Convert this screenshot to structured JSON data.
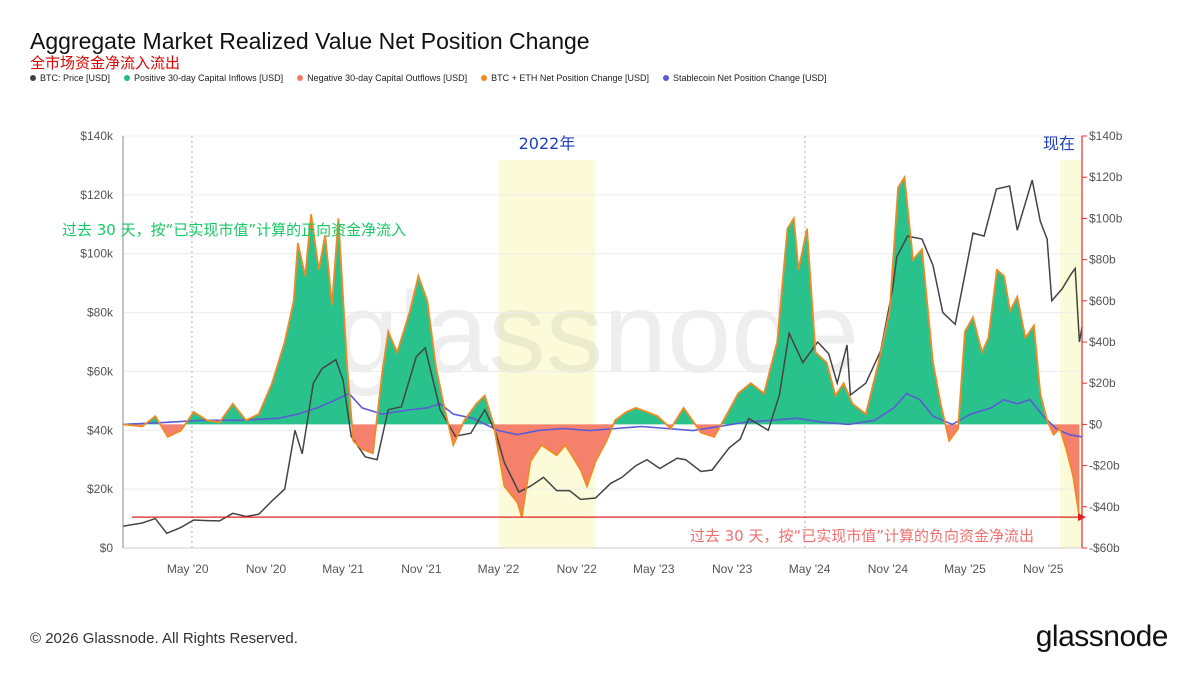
{
  "title": "Aggregate Market Realized Value Net Position Change",
  "subtitle": "全市场资金净流入流出",
  "legend": [
    {
      "label": "BTC: Price [USD]",
      "color": "#444444"
    },
    {
      "label": "Positive 30-day Capital Inflows [USD]",
      "color": "#1fbf86"
    },
    {
      "label": "Negative 30-day Capital Outflows [USD]",
      "color": "#f47a66"
    },
    {
      "label": "BTC + ETH Net Position Change [USD]",
      "color": "#f08a24"
    },
    {
      "label": "Stablecoin Net Position Change [USD]",
      "color": "#5b5bd6"
    }
  ],
  "annotations": {
    "year_2022": "2022年",
    "now": "现在",
    "inflow_note": "过去 30 天，按“已实现市值”计算的正向资金净流入",
    "outflow_note": "过去 30 天，按“已实现市值”计算的负向资金净流出"
  },
  "watermark": "glassnode",
  "copyright": "© 2026 Glassnode. All Rights Reserved.",
  "brand": "glassnode",
  "colors": {
    "inflow": "#1fbf86",
    "outflow": "#f47a66",
    "net": "#f08a24",
    "stablecoin": "#5b5bd6",
    "price": "#444444",
    "highlight": "#fbfbd9",
    "right_axis": "#e03030",
    "annotation_blue": "#1f3fbf",
    "annotation_green": "#18c864",
    "annotation_red": "#f07070"
  },
  "chart_data": {
    "type": "area",
    "x_range": [
      "2019-12-01",
      "2026-01-31"
    ],
    "x_ticks": [
      {
        "date": "2020-05-01",
        "label": "May '20"
      },
      {
        "date": "2020-11-01",
        "label": "Nov '20"
      },
      {
        "date": "2021-05-01",
        "label": "May '21"
      },
      {
        "date": "2021-11-01",
        "label": "Nov '21"
      },
      {
        "date": "2022-05-01",
        "label": "May '22"
      },
      {
        "date": "2022-11-01",
        "label": "Nov '22"
      },
      {
        "date": "2023-05-01",
        "label": "May '23"
      },
      {
        "date": "2023-11-01",
        "label": "Nov '23"
      },
      {
        "date": "2024-05-01",
        "label": "May '24"
      },
      {
        "date": "2024-11-01",
        "label": "Nov '24"
      },
      {
        "date": "2025-05-01",
        "label": "May '25"
      },
      {
        "date": "2025-11-01",
        "label": "Nov '25"
      }
    ],
    "y_left": {
      "min": 0,
      "max": 140000,
      "ticks": [
        0,
        20000,
        40000,
        60000,
        80000,
        100000,
        120000,
        140000
      ],
      "labels": [
        "$0",
        "$20k",
        "$40k",
        "$60k",
        "$80k",
        "$100k",
        "$120k",
        "$140k"
      ]
    },
    "y_right": {
      "min": -60,
      "max": 140,
      "unit": "billion USD",
      "ticks": [
        -60,
        -40,
        -20,
        0,
        20,
        40,
        60,
        80,
        100,
        120,
        140
      ],
      "labels": [
        "-$60b",
        "-$40b",
        "-$20b",
        "$0",
        "$20b",
        "$40b",
        "$60b",
        "$80b",
        "$100b",
        "$120b",
        "$140b"
      ]
    },
    "highlight_ranges": [
      [
        "2022-05-01",
        "2022-12-15"
      ],
      [
        "2025-12-10",
        "2026-01-31"
      ]
    ],
    "reference_line_value": -45,
    "dashed_vertical_dates": [
      "2020-05-11",
      "2024-04-20"
    ],
    "series": [
      {
        "name": "BTC + ETH Net Position Change [USD]",
        "axis": "right",
        "points": [
          [
            "2019-12-01",
            0
          ],
          [
            "2020-01-15",
            -1
          ],
          [
            "2020-02-15",
            4
          ],
          [
            "2020-03-15",
            -6
          ],
          [
            "2020-04-15",
            -3
          ],
          [
            "2020-05-15",
            6
          ],
          [
            "2020-06-15",
            2
          ],
          [
            "2020-07-15",
            1
          ],
          [
            "2020-08-15",
            10
          ],
          [
            "2020-09-15",
            2
          ],
          [
            "2020-10-15",
            5
          ],
          [
            "2020-11-15",
            20
          ],
          [
            "2020-12-15",
            40
          ],
          [
            "2021-01-05",
            60
          ],
          [
            "2021-01-15",
            88
          ],
          [
            "2021-02-01",
            72
          ],
          [
            "2021-02-15",
            102
          ],
          [
            "2021-03-05",
            75
          ],
          [
            "2021-03-20",
            92
          ],
          [
            "2021-04-05",
            58
          ],
          [
            "2021-04-20",
            100
          ],
          [
            "2021-05-10",
            30
          ],
          [
            "2021-05-25",
            -8
          ],
          [
            "2021-06-15",
            -12
          ],
          [
            "2021-07-10",
            -14
          ],
          [
            "2021-08-01",
            25
          ],
          [
            "2021-08-15",
            45
          ],
          [
            "2021-09-05",
            35
          ],
          [
            "2021-10-05",
            55
          ],
          [
            "2021-10-25",
            72
          ],
          [
            "2021-11-15",
            60
          ],
          [
            "2021-12-05",
            28
          ],
          [
            "2021-12-25",
            8
          ],
          [
            "2022-01-15",
            -10
          ],
          [
            "2022-02-10",
            2
          ],
          [
            "2022-03-10",
            10
          ],
          [
            "2022-03-30",
            14
          ],
          [
            "2022-04-20",
            0
          ],
          [
            "2022-05-15",
            -30
          ],
          [
            "2022-06-15",
            -38
          ],
          [
            "2022-06-25",
            -45
          ],
          [
            "2022-07-15",
            -18
          ],
          [
            "2022-08-10",
            -10
          ],
          [
            "2022-09-15",
            -15
          ],
          [
            "2022-10-05",
            -10
          ],
          [
            "2022-11-10",
            -22
          ],
          [
            "2022-11-25",
            -30
          ],
          [
            "2022-12-15",
            -18
          ],
          [
            "2023-01-10",
            -8
          ],
          [
            "2023-01-30",
            2
          ],
          [
            "2023-02-25",
            6
          ],
          [
            "2023-03-20",
            8
          ],
          [
            "2023-04-15",
            6
          ],
          [
            "2023-05-10",
            4
          ],
          [
            "2023-06-10",
            -2
          ],
          [
            "2023-07-10",
            8
          ],
          [
            "2023-08-20",
            -4
          ],
          [
            "2023-09-20",
            -6
          ],
          [
            "2023-10-20",
            5
          ],
          [
            "2023-11-15",
            15
          ],
          [
            "2023-12-15",
            20
          ],
          [
            "2024-01-15",
            15
          ],
          [
            "2024-02-15",
            40
          ],
          [
            "2024-03-10",
            95
          ],
          [
            "2024-03-25",
            100
          ],
          [
            "2024-04-05",
            75
          ],
          [
            "2024-04-25",
            95
          ],
          [
            "2024-05-15",
            35
          ],
          [
            "2024-06-10",
            30
          ],
          [
            "2024-07-01",
            14
          ],
          [
            "2024-07-20",
            20
          ],
          [
            "2024-08-10",
            10
          ],
          [
            "2024-09-10",
            5
          ],
          [
            "2024-10-10",
            30
          ],
          [
            "2024-11-05",
            55
          ],
          [
            "2024-11-25",
            115
          ],
          [
            "2024-12-10",
            120
          ],
          [
            "2024-12-30",
            80
          ],
          [
            "2025-01-20",
            85
          ],
          [
            "2025-02-15",
            30
          ],
          [
            "2025-03-05",
            10
          ],
          [
            "2025-03-25",
            -8
          ],
          [
            "2025-04-15",
            -2
          ],
          [
            "2025-05-01",
            45
          ],
          [
            "2025-05-20",
            52
          ],
          [
            "2025-06-10",
            35
          ],
          [
            "2025-06-25",
            42
          ],
          [
            "2025-07-15",
            75
          ],
          [
            "2025-08-01",
            72
          ],
          [
            "2025-08-15",
            55
          ],
          [
            "2025-09-01",
            62
          ],
          [
            "2025-09-20",
            42
          ],
          [
            "2025-10-10",
            48
          ],
          [
            "2025-10-25",
            15
          ],
          [
            "2025-11-10",
            2
          ],
          [
            "2025-11-25",
            -5
          ],
          [
            "2025-12-10",
            -2
          ],
          [
            "2025-12-25",
            -12
          ],
          [
            "2026-01-10",
            -25
          ],
          [
            "2026-01-25",
            -45
          ]
        ]
      },
      {
        "name": "Stablecoin Net Position Change [USD]",
        "axis": "right",
        "points": [
          [
            "2019-12-01",
            0
          ],
          [
            "2020-03-15",
            1
          ],
          [
            "2020-06-01",
            2
          ],
          [
            "2020-09-01",
            2
          ],
          [
            "2020-12-01",
            3
          ],
          [
            "2021-01-15",
            5
          ],
          [
            "2021-03-01",
            8
          ],
          [
            "2021-04-15",
            12
          ],
          [
            "2021-05-15",
            15
          ],
          [
            "2021-06-15",
            8
          ],
          [
            "2021-08-01",
            5
          ],
          [
            "2021-10-01",
            7
          ],
          [
            "2021-11-15",
            8
          ],
          [
            "2021-12-15",
            10
          ],
          [
            "2022-01-15",
            5
          ],
          [
            "2022-03-01",
            3
          ],
          [
            "2022-05-01",
            -3
          ],
          [
            "2022-06-15",
            -5
          ],
          [
            "2022-08-01",
            -3
          ],
          [
            "2022-10-01",
            -2
          ],
          [
            "2022-12-01",
            -3
          ],
          [
            "2023-02-01",
            -2
          ],
          [
            "2023-04-01",
            -1
          ],
          [
            "2023-06-01",
            -2
          ],
          [
            "2023-08-01",
            -3
          ],
          [
            "2023-10-01",
            -1
          ],
          [
            "2023-12-01",
            1
          ],
          [
            "2024-02-01",
            2
          ],
          [
            "2024-04-01",
            3
          ],
          [
            "2024-06-01",
            1
          ],
          [
            "2024-08-01",
            0
          ],
          [
            "2024-10-01",
            2
          ],
          [
            "2024-11-15",
            8
          ],
          [
            "2024-12-15",
            15
          ],
          [
            "2025-01-15",
            12
          ],
          [
            "2025-02-15",
            4
          ],
          [
            "2025-04-01",
            0
          ],
          [
            "2025-05-15",
            5
          ],
          [
            "2025-07-01",
            8
          ],
          [
            "2025-08-01",
            12
          ],
          [
            "2025-09-01",
            10
          ],
          [
            "2025-10-01",
            12
          ],
          [
            "2025-11-01",
            4
          ],
          [
            "2025-12-01",
            -2
          ],
          [
            "2026-01-01",
            -5
          ],
          [
            "2026-01-31",
            -6
          ]
        ]
      },
      {
        "name": "BTC: Price [USD]",
        "axis": "left",
        "points": [
          [
            "2019-12-01",
            7400
          ],
          [
            "2020-01-15",
            8500
          ],
          [
            "2020-02-15",
            10000
          ],
          [
            "2020-03-13",
            5000
          ],
          [
            "2020-04-15",
            7000
          ],
          [
            "2020-05-15",
            9500
          ],
          [
            "2020-06-15",
            9300
          ],
          [
            "2020-07-15",
            9200
          ],
          [
            "2020-08-15",
            11800
          ],
          [
            "2020-09-15",
            10700
          ],
          [
            "2020-10-15",
            11500
          ],
          [
            "2020-11-15",
            16000
          ],
          [
            "2020-12-15",
            20000
          ],
          [
            "2021-01-08",
            40000
          ],
          [
            "2021-01-25",
            32000
          ],
          [
            "2021-02-20",
            56000
          ],
          [
            "2021-03-13",
            61000
          ],
          [
            "2021-04-14",
            64000
          ],
          [
            "2021-05-01",
            57000
          ],
          [
            "2021-05-20",
            38000
          ],
          [
            "2021-06-22",
            31000
          ],
          [
            "2021-07-20",
            30000
          ],
          [
            "2021-08-15",
            47000
          ],
          [
            "2021-09-15",
            48000
          ],
          [
            "2021-10-20",
            65000
          ],
          [
            "2021-11-10",
            68000
          ],
          [
            "2021-12-15",
            47000
          ],
          [
            "2022-01-20",
            38000
          ],
          [
            "2022-02-25",
            39000
          ],
          [
            "2022-03-30",
            47000
          ],
          [
            "2022-04-25",
            39000
          ],
          [
            "2022-05-15",
            29000
          ],
          [
            "2022-06-18",
            19000
          ],
          [
            "2022-07-15",
            21000
          ],
          [
            "2022-08-15",
            24000
          ],
          [
            "2022-09-15",
            19500
          ],
          [
            "2022-10-15",
            19500
          ],
          [
            "2022-11-10",
            16500
          ],
          [
            "2022-12-15",
            17000
          ],
          [
            "2023-01-20",
            22000
          ],
          [
            "2023-02-15",
            24000
          ],
          [
            "2023-03-20",
            28000
          ],
          [
            "2023-04-15",
            30000
          ],
          [
            "2023-05-15",
            27000
          ],
          [
            "2023-06-25",
            30500
          ],
          [
            "2023-07-15",
            30000
          ],
          [
            "2023-08-20",
            26000
          ],
          [
            "2023-09-15",
            26500
          ],
          [
            "2023-10-25",
            34000
          ],
          [
            "2023-11-20",
            37000
          ],
          [
            "2023-12-10",
            44000
          ],
          [
            "2024-01-25",
            40000
          ],
          [
            "2024-02-20",
            52000
          ],
          [
            "2024-03-14",
            73000
          ],
          [
            "2024-04-15",
            63000
          ],
          [
            "2024-05-20",
            70000
          ],
          [
            "2024-06-15",
            66000
          ],
          [
            "2024-07-05",
            56000
          ],
          [
            "2024-07-28",
            69000
          ],
          [
            "2024-08-05",
            52000
          ],
          [
            "2024-09-10",
            56000
          ],
          [
            "2024-10-15",
            67000
          ],
          [
            "2024-11-12",
            88000
          ],
          [
            "2024-11-22",
            99000
          ],
          [
            "2024-12-17",
            106000
          ],
          [
            "2025-01-20",
            105000
          ],
          [
            "2025-02-15",
            96000
          ],
          [
            "2025-03-10",
            80000
          ],
          [
            "2025-04-08",
            76000
          ],
          [
            "2025-05-20",
            107000
          ],
          [
            "2025-06-15",
            106000
          ],
          [
            "2025-07-14",
            122000
          ],
          [
            "2025-08-14",
            123000
          ],
          [
            "2025-09-01",
            108000
          ],
          [
            "2025-10-06",
            125000
          ],
          [
            "2025-10-25",
            111000
          ],
          [
            "2025-11-10",
            105000
          ],
          [
            "2025-11-21",
            84000
          ],
          [
            "2025-12-15",
            88000
          ],
          [
            "2026-01-05",
            93000
          ],
          [
            "2026-01-15",
            95000
          ],
          [
            "2026-01-25",
            70000
          ],
          [
            "2026-01-31",
            75000
          ]
        ]
      }
    ]
  }
}
